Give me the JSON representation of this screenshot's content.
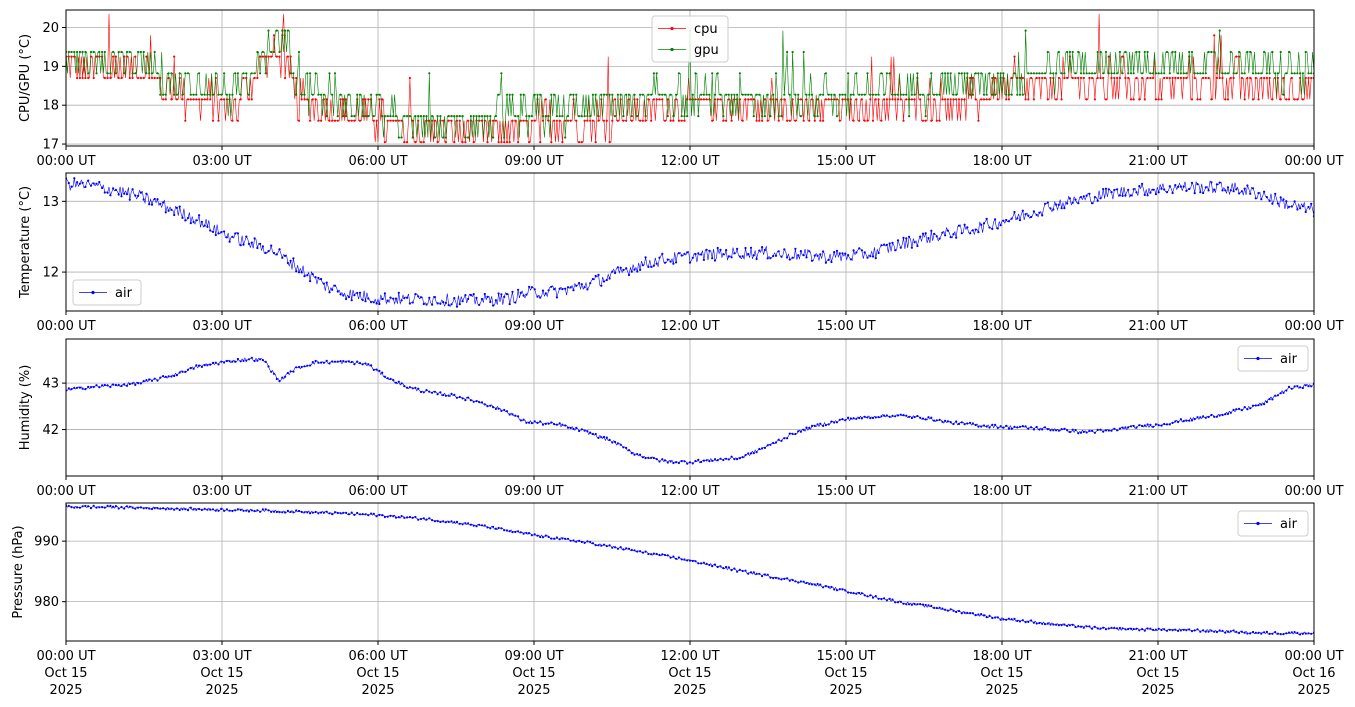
{
  "figure": {
    "x_ticks": [
      "00:00 UT",
      "03:00 UT",
      "06:00 UT",
      "09:00 UT",
      "12:00 UT",
      "15:00 UT",
      "18:00 UT",
      "21:00 UT",
      "00:00 UT"
    ],
    "date_ticks": [
      [
        "Oct 15",
        "2025"
      ],
      [
        "Oct 15",
        "2025"
      ],
      [
        "Oct 15",
        "2025"
      ],
      [
        "Oct 15",
        "2025"
      ],
      [
        "Oct 15",
        "2025"
      ],
      [
        "Oct 15",
        "2025"
      ],
      [
        "Oct 15",
        "2025"
      ],
      [
        "Oct 15",
        "2025"
      ],
      [
        "Oct 16",
        "2025"
      ]
    ],
    "colors": {
      "cpu": "#ff0000",
      "gpu": "#008000",
      "air": "#0000ff",
      "grid": "#b0b0b0"
    }
  },
  "chart_data": [
    {
      "type": "line",
      "ylabel": "CPU/GPU (°C)",
      "ylim": [
        16.95,
        20.45
      ],
      "yticks": [
        17,
        18,
        19,
        20
      ],
      "xlim_hours": [
        0,
        24
      ],
      "grid": true,
      "legend": "top-center",
      "legend_entries": [
        "cpu",
        "gpu"
      ],
      "series": [
        {
          "name": "cpu",
          "color": "#ff0000",
          "step": 0.55,
          "x_hours": [
            0,
            1.5,
            2.2,
            3.3,
            3.8,
            4.2,
            4.4,
            5.5,
            6.6,
            7.5,
            8.4,
            9.5,
            10.5,
            11.5,
            12.5,
            13.5,
            14.5,
            15.5,
            16.5,
            17.3,
            18.0,
            18.8,
            19.5,
            20.5,
            21.5,
            22.5,
            23.3,
            24
          ],
          "values": [
            19.0,
            18.9,
            18.2,
            18.0,
            19.2,
            19.3,
            18.1,
            17.8,
            17.3,
            17.3,
            17.4,
            17.6,
            17.7,
            18.0,
            18.0,
            17.9,
            18.0,
            18.0,
            18.1,
            18.1,
            18.4,
            18.5,
            18.6,
            18.6,
            18.6,
            18.6,
            18.4,
            18.4
          ]
        },
        {
          "name": "gpu",
          "color": "#008000",
          "step": 0.55,
          "x_hours": [
            0,
            1.5,
            2.2,
            3.3,
            3.8,
            4.2,
            4.4,
            5.5,
            6.6,
            7.5,
            8.4,
            9.5,
            10.5,
            11.5,
            12.5,
            13.5,
            14.5,
            15.5,
            16.5,
            17.3,
            18.0,
            18.8,
            19.5,
            20.5,
            21.5,
            22.5,
            23.3,
            24
          ],
          "values": [
            19.1,
            19.0,
            18.4,
            18.1,
            19.4,
            19.5,
            18.4,
            17.9,
            17.4,
            17.4,
            17.5,
            17.7,
            17.9,
            18.1,
            18.1,
            18.0,
            18.1,
            18.2,
            18.3,
            18.4,
            18.6,
            18.8,
            18.9,
            18.9,
            18.9,
            18.9,
            18.7,
            18.7
          ]
        }
      ]
    },
    {
      "type": "line",
      "ylabel": "Temperature (°C)",
      "ylim": [
        11.45,
        13.4
      ],
      "yticks": [
        12,
        13
      ],
      "xlim_hours": [
        0,
        24
      ],
      "grid": true,
      "legend": "bottom-left",
      "legend_entries": [
        "air"
      ],
      "series": [
        {
          "name": "air",
          "color": "#0000ff",
          "noise": 0.05,
          "x_hours": [
            0,
            0.5,
            1.0,
            1.5,
            2.0,
            2.5,
            3.0,
            3.5,
            4.0,
            4.5,
            5.0,
            5.5,
            6.0,
            6.5,
            7.0,
            7.5,
            8.0,
            8.5,
            9.0,
            9.5,
            10.0,
            10.5,
            11.0,
            11.5,
            12.0,
            12.5,
            13.0,
            13.5,
            14.0,
            14.5,
            15.0,
            15.5,
            16.0,
            16.5,
            17.0,
            17.5,
            18.0,
            18.5,
            19.0,
            19.5,
            20.0,
            20.5,
            21.0,
            21.5,
            22.0,
            22.5,
            23.0,
            23.5,
            24
          ],
          "values": [
            13.25,
            13.22,
            13.15,
            13.05,
            12.9,
            12.75,
            12.55,
            12.42,
            12.3,
            12.05,
            11.8,
            11.68,
            11.63,
            11.62,
            11.62,
            11.6,
            11.6,
            11.63,
            11.72,
            11.73,
            11.82,
            11.95,
            12.1,
            12.18,
            12.22,
            12.25,
            12.27,
            12.27,
            12.25,
            12.22,
            12.22,
            12.27,
            12.38,
            12.48,
            12.55,
            12.62,
            12.72,
            12.82,
            12.95,
            13.02,
            13.1,
            13.15,
            13.18,
            13.2,
            13.2,
            13.18,
            13.1,
            12.95,
            12.87
          ]
        }
      ]
    },
    {
      "type": "line",
      "ylabel": "Humidity (%)",
      "ylim": [
        41.0,
        43.95
      ],
      "yticks": [
        42,
        43
      ],
      "xlim_hours": [
        0,
        24
      ],
      "grid": true,
      "legend": "top-right",
      "legend_entries": [
        "air"
      ],
      "series": [
        {
          "name": "air",
          "color": "#0000ff",
          "noise": 0.02,
          "x_hours": [
            0,
            0.5,
            1.0,
            1.5,
            2.0,
            2.5,
            3.0,
            3.5,
            3.8,
            4.1,
            4.4,
            4.8,
            5.5,
            5.8,
            6.2,
            6.6,
            7.0,
            7.5,
            8.0,
            8.5,
            8.8,
            9.5,
            10.0,
            10.5,
            11.0,
            11.5,
            12.0,
            12.5,
            13.0,
            13.5,
            14.0,
            14.5,
            15.0,
            15.5,
            16.0,
            16.5,
            17.0,
            17.5,
            18.0,
            18.5,
            19.0,
            19.5,
            20.0,
            20.5,
            21.0,
            21.5,
            22.0,
            22.5,
            23.0,
            23.5,
            24
          ],
          "values": [
            42.85,
            42.92,
            42.95,
            43.02,
            43.15,
            43.35,
            43.45,
            43.52,
            43.5,
            43.05,
            43.3,
            43.45,
            43.45,
            43.4,
            43.1,
            42.9,
            42.8,
            42.72,
            42.58,
            42.38,
            42.18,
            42.1,
            41.95,
            41.75,
            41.45,
            41.32,
            41.3,
            41.35,
            41.4,
            41.65,
            41.92,
            42.1,
            42.22,
            42.28,
            42.3,
            42.25,
            42.15,
            42.1,
            42.06,
            42.04,
            42.01,
            41.95,
            41.97,
            42.05,
            42.1,
            42.2,
            42.28,
            42.4,
            42.55,
            42.88,
            42.97
          ]
        }
      ]
    },
    {
      "type": "line",
      "ylabel": "Pressure (hPa)",
      "ylim": [
        973.5,
        996.3
      ],
      "yticks": [
        980,
        990
      ],
      "xlim_hours": [
        0,
        24
      ],
      "grid": true,
      "legend": "top-right",
      "legend_entries": [
        "air"
      ],
      "series": [
        {
          "name": "air",
          "color": "#0000ff",
          "noise": 0.12,
          "x_hours": [
            0,
            1,
            2,
            3,
            4,
            5,
            6,
            7,
            8,
            9,
            10,
            11,
            12,
            13,
            14,
            15,
            16,
            17,
            18,
            19,
            20,
            21,
            22,
            23,
            24
          ],
          "values": [
            995.7,
            995.6,
            995.4,
            995.2,
            995.0,
            994.7,
            994.3,
            993.6,
            992.5,
            991.0,
            989.8,
            988.3,
            986.8,
            985.0,
            983.5,
            981.8,
            980.0,
            978.6,
            977.2,
            976.3,
            975.5,
            975.4,
            975.2,
            974.8,
            974.8
          ]
        }
      ]
    }
  ]
}
